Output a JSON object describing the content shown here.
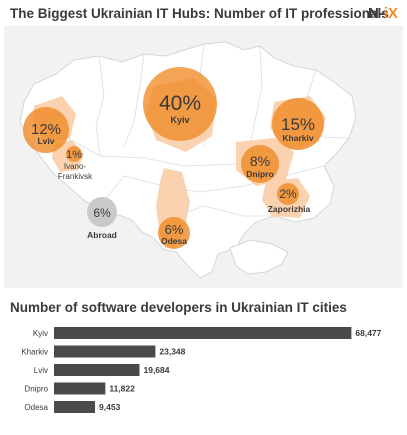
{
  "header": {
    "title": "The Biggest Ukrainian IT Hubs: Number of IT professionals",
    "logo_prefix": "N-",
    "logo_suffix": "iX"
  },
  "map": {
    "hubs": [
      {
        "city": "Kyiv",
        "share": "40%"
      },
      {
        "city": "Kharkiv",
        "share": "15%"
      },
      {
        "city": "Lviv",
        "share": "12%"
      },
      {
        "city": "Dnipro",
        "share": "8%"
      },
      {
        "city": "Odesa",
        "share": "6%"
      },
      {
        "city": "Zaporizhia",
        "share": "2%"
      },
      {
        "city": "Ivano-Frankivsk",
        "share": "1%",
        "city_line1": "Ivano-",
        "city_line2": "Frankivsk"
      },
      {
        "city": "Abroad",
        "share": "6%"
      }
    ]
  },
  "chart_data": {
    "type": "bar",
    "orientation": "horizontal",
    "title": "Number of software developers in Ukrainian IT cities",
    "categories": [
      "Kyiv",
      "Kharkiv",
      "Lviv",
      "Dnipro",
      "Odesa"
    ],
    "values": [
      68477,
      23348,
      19684,
      11822,
      9453
    ],
    "value_labels": [
      "68,477",
      "23,348",
      "19,684",
      "11,822",
      "9,453"
    ],
    "xlim": [
      0,
      70000
    ],
    "grid": false,
    "bar_color": "#4a4a4a"
  },
  "colors": {
    "accent": "#f08a24",
    "map_fill": "#ffffff",
    "region_highlight": "#fbd2b0",
    "abroad": "#c9c9c9"
  }
}
